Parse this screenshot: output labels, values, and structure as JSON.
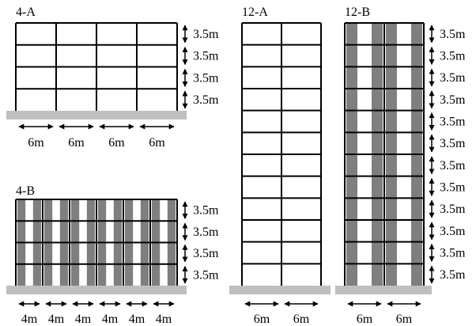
{
  "frames": [
    {
      "id": "4-A",
      "title": "4-A",
      "stories": 4,
      "bays": 4,
      "bay_label": "6m",
      "story_label": "3.5m",
      "infill": false
    },
    {
      "id": "4-B",
      "title": "4-B",
      "stories": 4,
      "bays": 6,
      "bay_label": "4m",
      "story_label": "3.5m",
      "infill": true
    },
    {
      "id": "12-A",
      "title": "12-A",
      "stories": 12,
      "bays": 2,
      "bay_label": "6m",
      "story_label": "",
      "infill": false
    },
    {
      "id": "12-B",
      "title": "12-B",
      "stories": 12,
      "bays": 2,
      "bay_label": "6m",
      "story_label": "3.5m",
      "infill": true
    }
  ],
  "colors": {
    "ground": "#bfbfbf",
    "infill": "#7f7f7f",
    "frame": "#000000"
  }
}
